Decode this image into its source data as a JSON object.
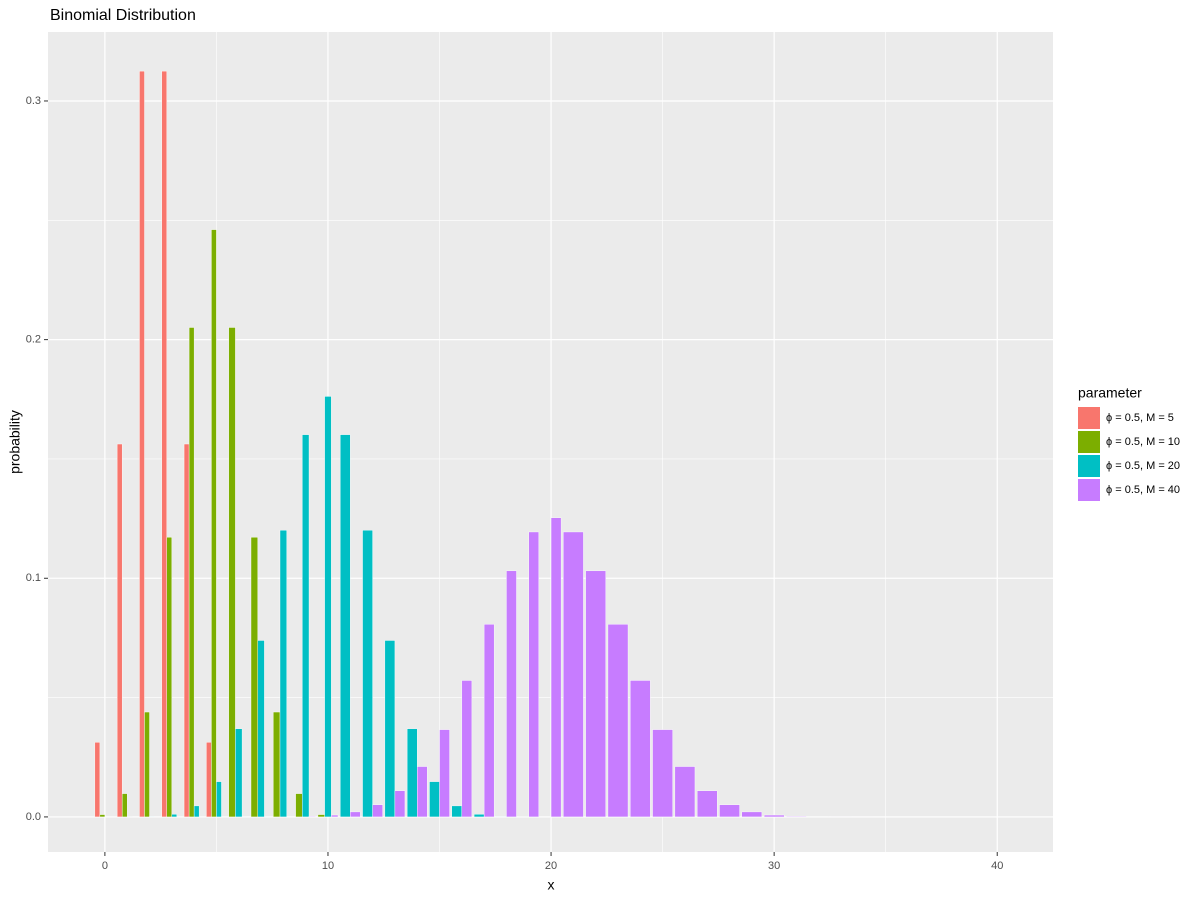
{
  "chart_data": {
    "type": "bar",
    "title": "Binomial Distribution",
    "x_label": "x",
    "y_label": "probability",
    "legend_title": "parameter",
    "legend_position": "right",
    "grid": true,
    "x": [
      0,
      1,
      2,
      3,
      4,
      5,
      6,
      7,
      8,
      9,
      10,
      11,
      12,
      13,
      14,
      15,
      16,
      17,
      18,
      19,
      20,
      21,
      22,
      23,
      24,
      25,
      26,
      27,
      28,
      29,
      30,
      31,
      32,
      33,
      34,
      35,
      36,
      37,
      38,
      39,
      40
    ],
    "xlim": [
      -2.55,
      42.5
    ],
    "xticks": [
      0,
      10,
      20,
      30,
      40
    ],
    "ylim": [
      -0.0147,
      0.3289
    ],
    "yticks": [
      {
        "value": 0,
        "label": "0.0"
      },
      0.1,
      0.2,
      0.3
    ],
    "series": [
      {
        "name": "ϕ = 0.5, M = 5",
        "color": "#F8766D",
        "values": [
          0.03125,
          0.15625,
          0.3125,
          0.3125,
          0.15625,
          0.03125,
          null,
          null,
          null,
          null,
          null,
          null,
          null,
          null,
          null,
          null,
          null,
          null,
          null,
          null,
          null,
          null,
          null,
          null,
          null,
          null,
          null,
          null,
          null,
          null,
          null,
          null,
          null,
          null,
          null,
          null,
          null,
          null,
          null,
          null,
          null
        ]
      },
      {
        "name": "ϕ = 0.5, M = 10",
        "color": "#7CAE00",
        "values": [
          0.000977,
          0.009766,
          0.043945,
          0.117188,
          0.205078,
          0.246094,
          0.205078,
          0.117188,
          0.043945,
          0.009766,
          0.000977,
          null,
          null,
          null,
          null,
          null,
          null,
          null,
          null,
          null,
          null,
          null,
          null,
          null,
          null,
          null,
          null,
          null,
          null,
          null,
          null,
          null,
          null,
          null,
          null,
          null,
          null,
          null,
          null,
          null,
          null
        ]
      },
      {
        "name": "ϕ = 0.5, M = 20",
        "color": "#00BFC4",
        "values": [
          1e-06,
          1.9e-05,
          0.000181,
          0.001087,
          0.004621,
          0.014786,
          0.036964,
          0.073929,
          0.120134,
          0.160179,
          0.176197,
          0.160179,
          0.120134,
          0.073929,
          0.036964,
          0.014786,
          0.004621,
          0.001087,
          0.000181,
          1.9e-05,
          1e-06,
          null,
          null,
          null,
          null,
          null,
          null,
          null,
          null,
          null,
          null,
          null,
          null,
          null,
          null,
          null,
          null,
          null,
          null,
          null,
          null
        ]
      },
      {
        "name": "ϕ = 0.5, M = 40",
        "color": "#C77CFF",
        "values": [
          0,
          0,
          0,
          0,
          0,
          6e-07,
          3.5e-06,
          1.69e-05,
          6.99e-05,
          0.000249,
          0.000771,
          0.002103,
          0.005081,
          0.010944,
          0.021107,
          0.036585,
          0.057164,
          0.080702,
          0.10312,
          0.119402,
          0.125371,
          0.119402,
          0.10312,
          0.080702,
          0.057164,
          0.036585,
          0.021107,
          0.010944,
          0.005081,
          0.002103,
          0.000771,
          0.000249,
          6.99e-05,
          1.69e-05,
          3.5e-06,
          6e-07,
          0,
          0,
          0,
          0,
          0
        ]
      }
    ]
  }
}
